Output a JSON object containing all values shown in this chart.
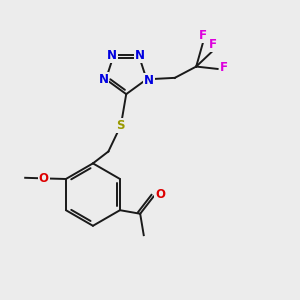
{
  "bg_color": "#ececec",
  "bond_color": "#1a1a1a",
  "N_color": "#0000e0",
  "O_color": "#dd0000",
  "S_color": "#999900",
  "F_color": "#dd00dd",
  "font_size": 8.5,
  "lw": 1.4,
  "fig_size": [
    3.0,
    3.0
  ],
  "dpi": 100,
  "xlim": [
    0,
    10
  ],
  "ylim": [
    0,
    10
  ]
}
